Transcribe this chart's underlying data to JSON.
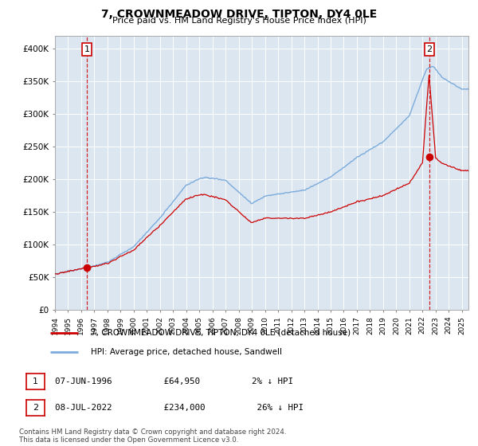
{
  "title": "7, CROWNMEADOW DRIVE, TIPTON, DY4 0LE",
  "subtitle": "Price paid vs. HM Land Registry's House Price Index (HPI)",
  "legend_line1": "7, CROWNMEADOW DRIVE, TIPTON, DY4 0LE (detached house)",
  "legend_line2": "HPI: Average price, detached house, Sandwell",
  "table_row1": [
    "1",
    "07-JUN-1996",
    "£64,950",
    "2% ↓ HPI"
  ],
  "table_row2": [
    "2",
    "08-JUL-2022",
    "£234,000",
    "26% ↓ HPI"
  ],
  "footnote": "Contains HM Land Registry data © Crown copyright and database right 2024.\nThis data is licensed under the Open Government Licence v3.0.",
  "hpi_color": "#7aabdc",
  "price_color": "#cc0000",
  "background_color": "#dce6f1",
  "grid_color": "#ffffff",
  "ylim": [
    0,
    420000
  ],
  "sale1_year": 1996.44,
  "sale1_price": 64950,
  "sale2_year": 2022.52,
  "sale2_price": 234000,
  "y_ticks": [
    0,
    50000,
    100000,
    150000,
    200000,
    250000,
    300000,
    350000,
    400000
  ],
  "y_labels": [
    "£0",
    "£50K",
    "£100K",
    "£150K",
    "£200K",
    "£250K",
    "£300K",
    "£350K",
    "£400K"
  ]
}
